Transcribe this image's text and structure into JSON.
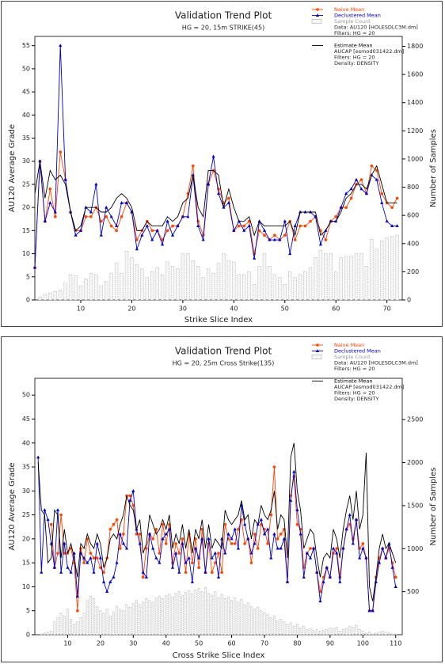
{
  "chart_data": [
    {
      "type": "line",
      "title": "Validation Trend Plot",
      "subtitle": "HG = 20, 15m STRIKE(45)",
      "x_label": "Strike Slice Index",
      "y_label": "AU120 Average Grade",
      "y2_label": "Number of Samples",
      "x": [
        1,
        2,
        3,
        4,
        5,
        6,
        7,
        8,
        9,
        10,
        11,
        12,
        13,
        14,
        15,
        16,
        17,
        18,
        19,
        20,
        21,
        22,
        23,
        24,
        25,
        26,
        27,
        28,
        29,
        30,
        31,
        32,
        33,
        34,
        35,
        36,
        37,
        38,
        39,
        40,
        41,
        42,
        43,
        44,
        45,
        46,
        47,
        48,
        49,
        50,
        51,
        52,
        53,
        54,
        55,
        56,
        57,
        58,
        59,
        60,
        61,
        62,
        63,
        64,
        65,
        66,
        67,
        68,
        69,
        70,
        71,
        72
      ],
      "xlim": [
        1,
        73
      ],
      "xticks": [
        10,
        20,
        30,
        40,
        50,
        60,
        70
      ],
      "ylim": [
        0,
        57
      ],
      "yticks": [
        0,
        5,
        10,
        15,
        20,
        25,
        30,
        35,
        40,
        45,
        50,
        55
      ],
      "y2lim": [
        0,
        1870
      ],
      "y2ticks": [
        0,
        200,
        400,
        600,
        800,
        1000,
        1200,
        1400,
        1600,
        1800
      ],
      "series": [
        {
          "name": "Naive Mean",
          "color": "#ff4500",
          "marker": "circle",
          "values": [
            7,
            30,
            17,
            24,
            18,
            32,
            26,
            19,
            15,
            15,
            18,
            18,
            20,
            17,
            18,
            16,
            15,
            18,
            21,
            19,
            13,
            15,
            17,
            15,
            15,
            13,
            15,
            16,
            16,
            18,
            23,
            29,
            17,
            14,
            25,
            28,
            24,
            21,
            22,
            15,
            16,
            16,
            17,
            10,
            15,
            14,
            13,
            14,
            13,
            14,
            17,
            13,
            16,
            16,
            17,
            18,
            15,
            13,
            17,
            18,
            20,
            20,
            22,
            25,
            26,
            23,
            29,
            28,
            23,
            21,
            20,
            22
          ]
        },
        {
          "name": "Declustered Mean",
          "color": "#0000cc",
          "marker": "triangle",
          "values": [
            7,
            30,
            17,
            21,
            19,
            55,
            26,
            19,
            14,
            15,
            20,
            19,
            25,
            14,
            20,
            18,
            16,
            21,
            21,
            19,
            11,
            14,
            16,
            13,
            15,
            12,
            17,
            14,
            16,
            18,
            18,
            27,
            16,
            13,
            25,
            31,
            23,
            20,
            21,
            15,
            17,
            15,
            16,
            9,
            17,
            15,
            13,
            13,
            13,
            17,
            10,
            16,
            19,
            19,
            19,
            18,
            12,
            15,
            17,
            17,
            20,
            23,
            24,
            26,
            24,
            23,
            27,
            26,
            21,
            17,
            16,
            16
          ]
        },
        {
          "name": "Sample Count",
          "color": "#aaaaaa",
          "kind": "bar",
          "axis": "y2",
          "notes": [
            "Data: AU120 [HOLESDLC3M.dm]",
            "Filters: HG = 20"
          ],
          "values": [
            0,
            20,
            40,
            50,
            60,
            70,
            120,
            180,
            170,
            100,
            150,
            190,
            180,
            100,
            130,
            190,
            260,
            190,
            345,
            300,
            250,
            220,
            160,
            200,
            230,
            180,
            270,
            240,
            220,
            330,
            330,
            280,
            240,
            160,
            220,
            190,
            260,
            330,
            280,
            270,
            180,
            180,
            200,
            110,
            240,
            330,
            240,
            180,
            160,
            110,
            200,
            160,
            180,
            200,
            230,
            300,
            350,
            330,
            330,
            200,
            300,
            310,
            310,
            330,
            330,
            240,
            430,
            360,
            420,
            440,
            450,
            460
          ]
        },
        {
          "name": "Estimate Mean",
          "color": "#000000",
          "marker": "none",
          "notes": [
            "AUCAP [esmod031422.dm]",
            "Filters: HG = 20",
            "Density: DENSITY"
          ],
          "values": [
            23,
            30,
            22,
            28,
            26,
            27,
            25,
            19,
            15,
            16,
            20,
            20,
            20,
            19,
            19,
            20,
            22,
            23,
            22,
            20,
            15,
            15,
            17,
            16,
            16,
            16,
            18,
            17,
            18,
            21,
            22,
            27,
            20,
            18,
            28,
            28,
            27,
            20,
            24,
            20,
            17,
            17,
            18,
            14,
            17,
            16,
            16,
            16,
            16,
            16,
            17,
            14,
            19,
            19,
            19,
            19,
            14,
            15,
            17,
            17,
            19,
            22,
            23,
            25,
            25,
            24,
            27,
            29,
            25,
            21,
            21,
            21
          ]
        }
      ]
    },
    {
      "type": "line",
      "title": "Validation Trend Plot",
      "subtitle": "HG = 20, 25m Cross Strike(135)",
      "x_label": "Cross Strike Slice Index",
      "y_label": "AU120 Average Grade",
      "y2_label": "Number of Samples",
      "x": [
        1,
        2,
        3,
        4,
        5,
        6,
        7,
        8,
        9,
        10,
        11,
        12,
        13,
        14,
        15,
        16,
        17,
        18,
        19,
        20,
        21,
        22,
        23,
        24,
        25,
        26,
        27,
        28,
        29,
        30,
        31,
        32,
        33,
        34,
        35,
        36,
        37,
        38,
        39,
        40,
        41,
        42,
        43,
        44,
        45,
        46,
        47,
        48,
        49,
        50,
        51,
        52,
        53,
        54,
        55,
        56,
        57,
        58,
        59,
        60,
        61,
        62,
        63,
        64,
        65,
        66,
        67,
        68,
        69,
        70,
        71,
        72,
        73,
        74,
        75,
        76,
        77,
        78,
        79,
        80,
        81,
        82,
        83,
        84,
        85,
        86,
        87,
        88,
        89,
        90,
        91,
        92,
        93,
        94,
        95,
        96,
        97,
        98,
        99,
        100,
        101,
        102,
        103,
        104,
        105,
        106,
        107,
        108,
        109,
        110
      ],
      "xlim": [
        0,
        112
      ],
      "xticks": [
        10,
        20,
        30,
        40,
        50,
        60,
        70,
        80,
        90,
        100,
        110
      ],
      "ylim": [
        0,
        53.5
      ],
      "yticks": [
        0,
        5,
        10,
        15,
        20,
        25,
        30,
        35,
        40,
        45,
        50
      ],
      "y2lim": [
        0,
        2980
      ],
      "y2ticks": [
        500,
        1000,
        1500,
        2000,
        2500
      ],
      "series": [
        {
          "name": "Naive Mean",
          "color": "#ff4500",
          "marker": "circle",
          "values": [
            null,
            null,
            null,
            null,
            23,
            14,
            17,
            25,
            17,
            17,
            18,
            15,
            5,
            18,
            15,
            20,
            17,
            16,
            16,
            14,
            13,
            16,
            22,
            23,
            24,
            18,
            21,
            29,
            29,
            27,
            21,
            21,
            12,
            18,
            21,
            20,
            22,
            17,
            23,
            19,
            23,
            15,
            19,
            17,
            20,
            13,
            21,
            15,
            20,
            14,
            22,
            13,
            19,
            13,
            15,
            17,
            13,
            23,
            20,
            19,
            19,
            22,
            24,
            19,
            20,
            15,
            21,
            18,
            23,
            22,
            19,
            25,
            35,
            20,
            21,
            22,
            11,
            29,
            33,
            23,
            22,
            14,
            17,
            18,
            18,
            13,
            9,
            12,
            14,
            12,
            17,
            18,
            12,
            18,
            22,
            23,
            20,
            24,
            18,
            19,
            16,
            5,
            5,
            12,
            16,
            18,
            16,
            18,
            15,
            12
          ]
        },
        {
          "name": "Declustered Mean",
          "color": "#0000cc",
          "marker": "triangle",
          "values": [
            37,
            13,
            26,
            24,
            19,
            14,
            26,
            13,
            19,
            14,
            13,
            17,
            8,
            17,
            16,
            15,
            16,
            13,
            19,
            16,
            11,
            9,
            11,
            12,
            15,
            21,
            19,
            18,
            28,
            30,
            22,
            19,
            13,
            12,
            21,
            18,
            16,
            15,
            20,
            21,
            22,
            14,
            17,
            13,
            19,
            15,
            16,
            11,
            18,
            16,
            20,
            13,
            20,
            16,
            17,
            12,
            20,
            17,
            21,
            20,
            22,
            18,
            27,
            23,
            20,
            17,
            19,
            23,
            24,
            21,
            22,
            16,
            21,
            18,
            18,
            20,
            11,
            28,
            34,
            26,
            21,
            12,
            17,
            16,
            18,
            13,
            7,
            11,
            14,
            12,
            18,
            17,
            11,
            18,
            22,
            25,
            19,
            24,
            16,
            18,
            16,
            5,
            5,
            11,
            15,
            18,
            16,
            19,
            14,
            10
          ]
        },
        {
          "name": "Sample Count",
          "color": "#aaaaaa",
          "kind": "bar",
          "axis": "y2",
          "notes": [
            "Data: AU120 [HOLESDLC3M.dm]",
            "Filters: HG = 20"
          ],
          "values": [
            0,
            10,
            20,
            30,
            40,
            150,
            200,
            250,
            220,
            300,
            180,
            120,
            150,
            200,
            250,
            400,
            450,
            420,
            330,
            280,
            250,
            300,
            220,
            260,
            330,
            300,
            280,
            350,
            320,
            360,
            400,
            350,
            380,
            420,
            400,
            380,
            430,
            450,
            420,
            460,
            470,
            440,
            480,
            500,
            460,
            490,
            510,
            480,
            520,
            540,
            500,
            550,
            480,
            460,
            500,
            430,
            470,
            420,
            440,
            400,
            430,
            380,
            410,
            350,
            370,
            330,
            300,
            320,
            280,
            260,
            240,
            200,
            220,
            160,
            180,
            150,
            120,
            140,
            100,
            120,
            80,
            100,
            60,
            70,
            50,
            60,
            40,
            50,
            60,
            80,
            70,
            90,
            40,
            60,
            70,
            100,
            90,
            110,
            60,
            40,
            20,
            30,
            10,
            20,
            30,
            40,
            30,
            20,
            10,
            10
          ]
        },
        {
          "name": "Estimate Mean",
          "color": "#000000",
          "marker": "none",
          "notes": [
            "AUCAP [esmod031422.dm]",
            "Filters: HG = 20",
            "Density: DENSITY"
          ],
          "values": [
            36,
            26,
            25,
            15,
            16,
            26,
            25,
            16,
            22,
            17,
            19,
            16,
            12,
            19,
            18,
            21,
            19,
            18,
            21,
            19,
            14,
            16,
            20,
            21,
            20,
            23,
            25,
            29,
            27,
            26,
            22,
            24,
            17,
            19,
            25,
            23,
            21,
            22,
            24,
            22,
            25,
            18,
            21,
            19,
            23,
            18,
            22,
            17,
            22,
            20,
            24,
            18,
            23,
            18,
            20,
            19,
            18,
            26,
            24,
            23,
            24,
            25,
            28,
            24,
            25,
            20,
            24,
            23,
            27,
            25,
            24,
            26,
            30,
            22,
            25,
            24,
            16,
            37,
            40,
            30,
            26,
            18,
            20,
            22,
            21,
            16,
            12,
            16,
            17,
            16,
            22,
            20,
            16,
            22,
            26,
            29,
            24,
            30,
            22,
            25,
            38,
            10,
            7,
            12,
            18,
            21,
            18,
            19,
            17,
            15
          ]
        }
      ]
    }
  ]
}
